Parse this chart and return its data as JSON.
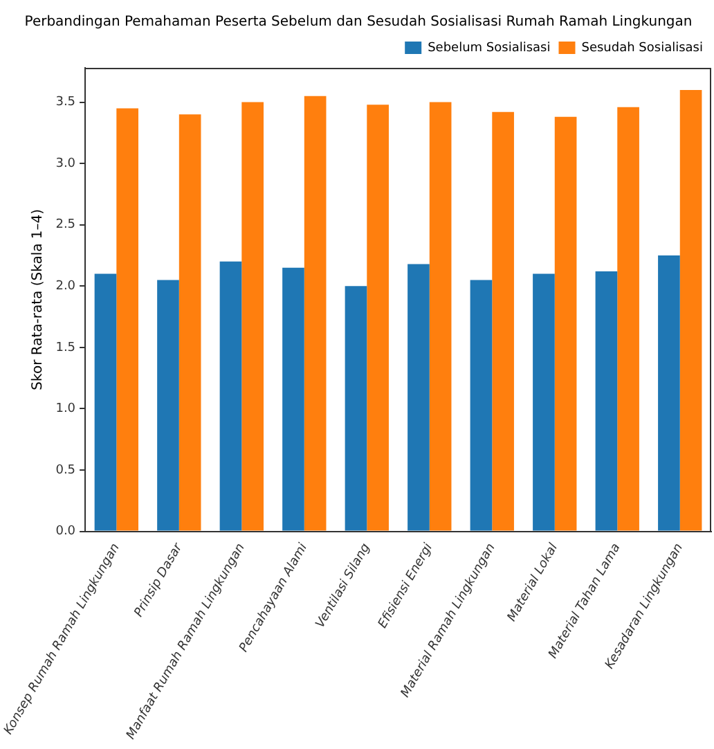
{
  "chart_data": {
    "type": "bar",
    "title": "Perbandingan Pemahaman Peserta Sebelum dan Sesudah Sosialisasi Rumah Ramah Lingkungan",
    "ylabel": "Skor Rata-rata (Skala 1–4)",
    "categories": [
      "Konsep Rumah Ramah Lingkungan",
      "Prinsip Dasar",
      "Manfaat Rumah Ramah Lingkungan",
      "Pencahayaan Alami",
      "Ventilasi Silang",
      "Efisiensi Energi",
      "Material Ramah Lingkungan",
      "Material Lokal",
      "Material Tahan Lama",
      "Kesadaran Lingkungan"
    ],
    "series": [
      {
        "name": "Sebelum Sosialisasi",
        "color": "#1f77b4",
        "values": [
          2.1,
          2.05,
          2.2,
          2.15,
          2.0,
          2.18,
          2.05,
          2.1,
          2.12,
          2.25
        ]
      },
      {
        "name": "Sesudah Sosialisasi",
        "color": "#ff7f0e",
        "values": [
          3.45,
          3.4,
          3.5,
          3.55,
          3.48,
          3.5,
          3.42,
          3.38,
          3.46,
          3.6
        ]
      }
    ],
    "ylim": [
      0,
      3.78
    ],
    "yticks": [
      {
        "value": 0,
        "label": "0.0"
      },
      {
        "value": 0.5,
        "label": "0.5"
      },
      {
        "value": 1,
        "label": "1.0"
      },
      {
        "value": 1.5,
        "label": "1.5"
      },
      {
        "value": 2,
        "label": "2.0"
      },
      {
        "value": 2.5,
        "label": "2.5"
      },
      {
        "value": 3,
        "label": "3.0"
      },
      {
        "value": 3.5,
        "label": "3.5"
      }
    ],
    "grid": false,
    "legend": "top right"
  }
}
